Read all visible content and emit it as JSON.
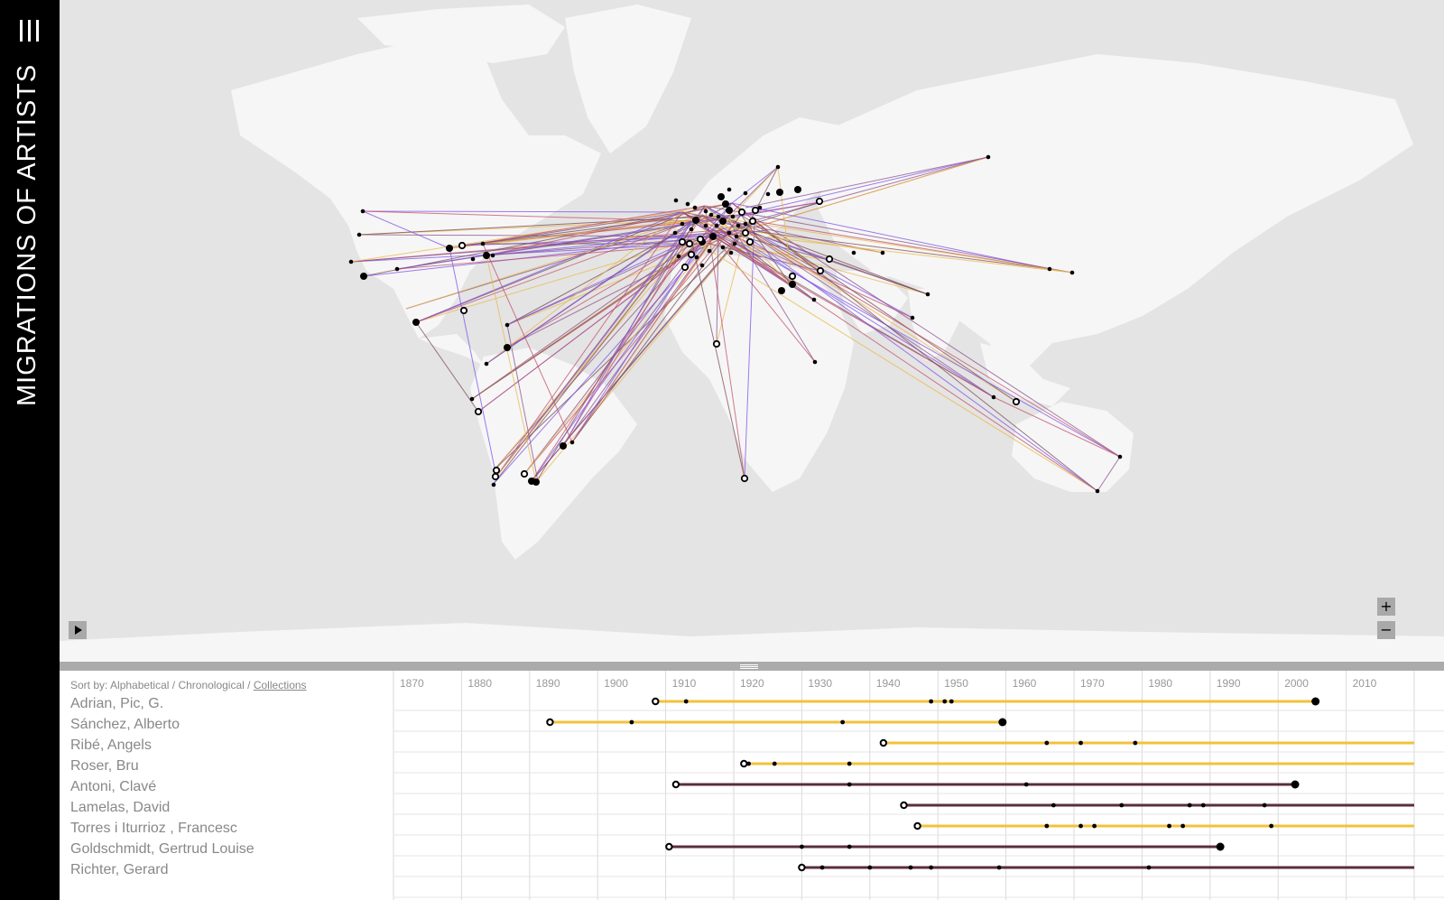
{
  "app": {
    "title": "MIGRATIONS OF ARTISTS",
    "menu_icon": "menu-icon"
  },
  "map": {
    "play_icon": "play-icon",
    "zoom_in_label": "+",
    "zoom_out_label": "−",
    "land_color": "#f6f6f6",
    "water_color": "#e4e4e4",
    "route_colors": [
      "#7b52e8",
      "#c0506a",
      "#8a4f8a",
      "#e8b84a",
      "#7a4a55"
    ]
  },
  "sort": {
    "prefix": "Sort by: ",
    "options": [
      "Alphabetical",
      "Chronological",
      "Collections"
    ],
    "separator": " / ",
    "active": "Collections"
  },
  "timeline": {
    "decades": [
      "1870",
      "1880",
      "1890",
      "1900",
      "1910",
      "1920",
      "1930",
      "1940",
      "1950",
      "1960",
      "1970",
      "1980",
      "1990",
      "2000",
      "2010"
    ],
    "artists": [
      {
        "name": "Adrian, Pic, G.",
        "color": "#f2c23c",
        "start": 1908.5,
        "end": 2005.5,
        "end_marker": "large",
        "events": [
          1913,
          1949,
          1951,
          1952
        ]
      },
      {
        "name": "Sánchez, Alberto",
        "color": "#f2c23c",
        "start": 1893,
        "end": 1959.5,
        "end_marker": "large",
        "events": [
          1905,
          1936
        ]
      },
      {
        "name": "Ribé, Angels",
        "color": "#f2c23c",
        "start": 1942,
        "end": 2020,
        "end_marker": "none",
        "events": [
          1966,
          1971,
          1979
        ]
      },
      {
        "name": "Roser, Bru",
        "color": "#f2c23c",
        "start": 1921.5,
        "end": 2020,
        "end_marker": "none",
        "events": [
          1922.2,
          1926,
          1937
        ]
      },
      {
        "name": "Antoni, Clavé",
        "color": "#5a2e3e",
        "start": 1911.5,
        "end": 2002.5,
        "end_marker": "large",
        "events": [
          1937,
          1963
        ]
      },
      {
        "name": "Lamelas, David",
        "color": "#5a2e3e",
        "start": 1945,
        "end": 2020,
        "end_marker": "none",
        "events": [
          1967,
          1977,
          1987,
          1989,
          1998
        ]
      },
      {
        "name": "Torres i Iturrioz , Francesc",
        "color": "#f2c23c",
        "start": 1947,
        "end": 2020,
        "end_marker": "none",
        "events": [
          1966,
          1971,
          1973,
          1984,
          1986,
          1999
        ]
      },
      {
        "name": "Goldschmidt, Gertrud Louise",
        "color": "#5a2e3e",
        "start": 1910.5,
        "end": 1991.5,
        "end_marker": "large",
        "events": [
          1930,
          1937
        ]
      },
      {
        "name": "Richter, Gerard",
        "color": "#5a2e3e",
        "start": 1930,
        "end": 2020,
        "end_marker": "none",
        "events": [
          1933,
          1940,
          1946,
          1949,
          1959,
          1981
        ]
      }
    ]
  }
}
